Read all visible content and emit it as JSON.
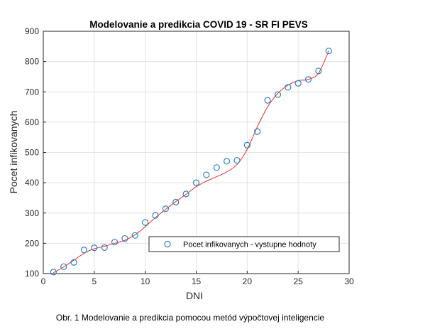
{
  "chart_data": {
    "type": "scatter",
    "title": "Modelovanie a predikcia COVID 19 - SR FI PEVS",
    "xlabel": "DNI",
    "ylabel": "Pocet infikovanych",
    "xlim": [
      0,
      30
    ],
    "ylim": [
      100,
      900
    ],
    "xticks": [
      0,
      5,
      10,
      15,
      20,
      25,
      30
    ],
    "yticks": [
      100,
      200,
      300,
      400,
      500,
      600,
      700,
      800,
      900
    ],
    "grid": true,
    "legend_position": "bottom-right",
    "series": [
      {
        "name": "Pocet infikovanych - vystupne hodnoty",
        "kind": "markers",
        "marker": "circle",
        "color": "#2f7fbf",
        "x": [
          1,
          2,
          3,
          4,
          5,
          6,
          7,
          8,
          9,
          10,
          11,
          12,
          13,
          14,
          15,
          16,
          17,
          18,
          19,
          20,
          21,
          22,
          23,
          24,
          25,
          26,
          27,
          28
        ],
        "y": [
          105,
          123,
          137,
          178,
          185,
          186,
          204,
          216,
          226,
          269,
          292,
          314,
          336,
          363,
          400,
          426,
          450,
          471,
          474,
          524,
          569,
          672,
          691,
          715,
          728,
          741,
          769,
          835
        ]
      },
      {
        "kind": "line",
        "color": "#e8302a",
        "x": [
          1,
          2,
          3,
          4,
          5,
          6,
          7,
          8,
          9,
          10,
          11,
          12,
          13,
          14,
          15,
          16,
          17,
          18,
          19,
          20,
          21,
          22,
          23,
          24,
          25,
          26,
          27,
          28
        ],
        "y": [
          103,
          122,
          144,
          167,
          182,
          190,
          200,
          210,
          228,
          255,
          285,
          312,
          338,
          362,
          387,
          405,
          420,
          436,
          460,
          510,
          585,
          650,
          695,
          722,
          737,
          741,
          762,
          835
        ]
      }
    ]
  },
  "caption": "Obr. 1 Modelovanie a predikcia pomocou metód výpočtovej inteligencie"
}
